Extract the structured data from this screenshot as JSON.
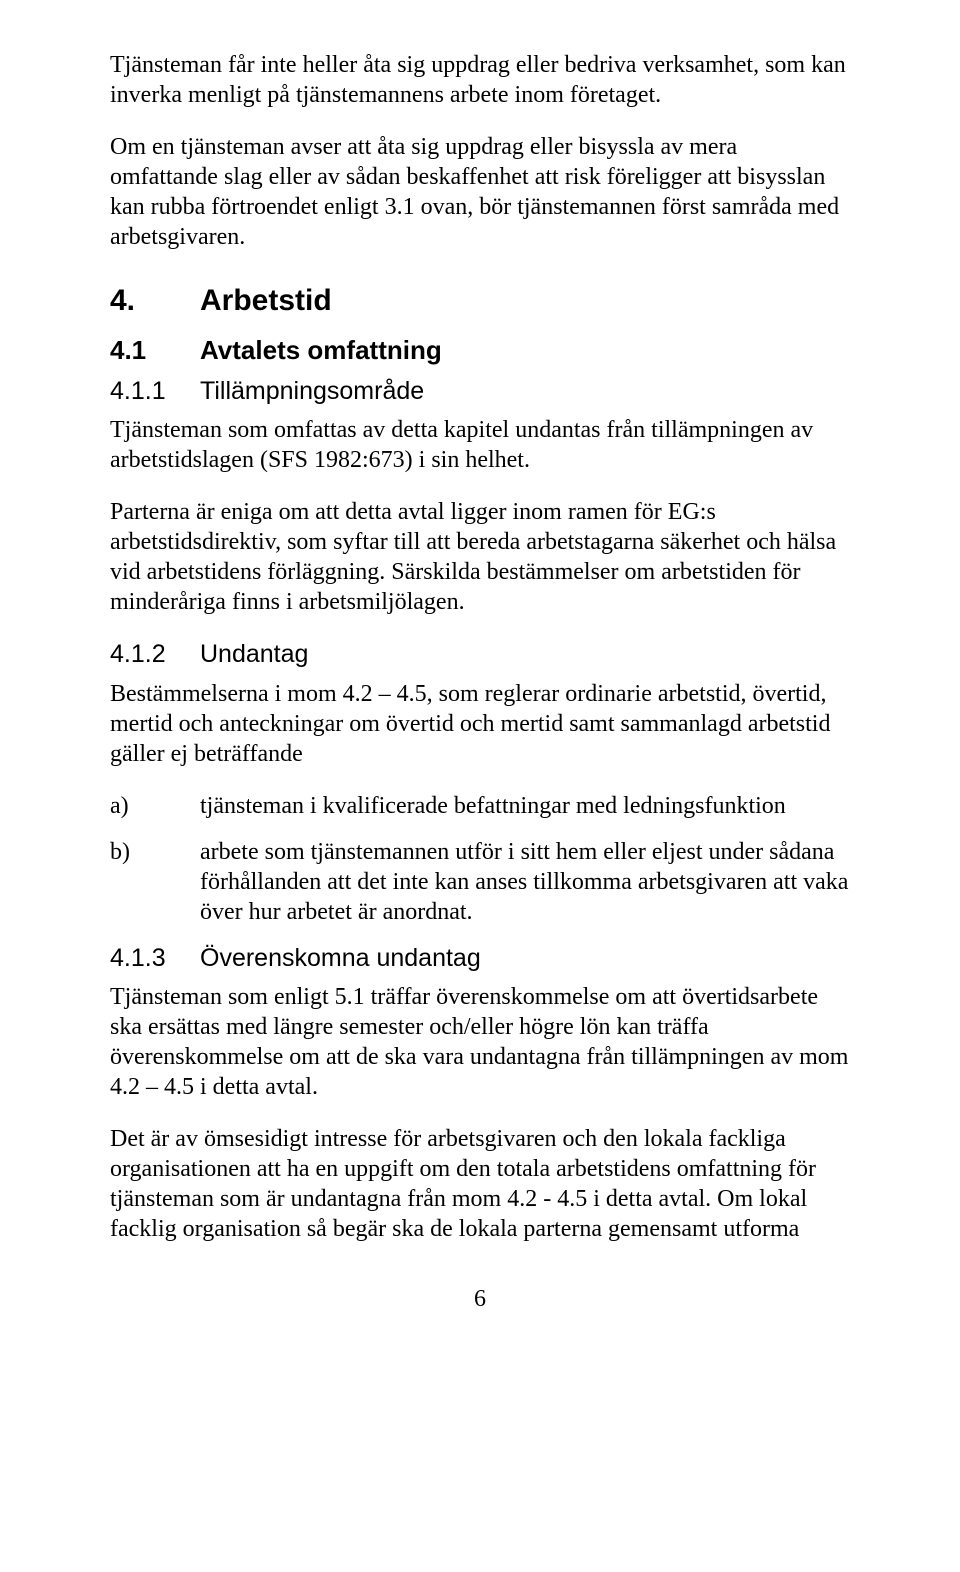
{
  "intro": {
    "p1": "Tjänsteman får inte heller åta sig uppdrag eller bedriva verksamhet, som kan inverka menligt på tjänstemannens arbete inom företaget.",
    "p2": "Om en tjänsteman avser att åta sig uppdrag eller bisyssla av mera omfattande slag eller av sådan beskaffenhet att risk föreligger att bisysslan kan rubba förtroendet enligt 3.1 ovan, bör tjänstemannen först samråda med arbetsgivaren."
  },
  "sec4": {
    "num": "4.",
    "title": "Arbetstid",
    "s1": {
      "num": "4.1",
      "title": "Avtalets omfattning",
      "s1": {
        "num": "4.1.1",
        "title": "Tillämpningsområde",
        "p1": "Tjänsteman som omfattas av detta kapitel undantas från tillämpningen av arbetstidslagen (SFS 1982:673) i sin helhet.",
        "p2": "Parterna är eniga om att detta avtal ligger inom ramen för EG:s arbetstidsdirektiv, som syftar till att bereda arbetstagarna säkerhet och hälsa vid arbetstidens förläggning. Särskilda bestämmelser om arbetstiden för minderåriga finns i arbetsmiljölagen."
      },
      "s2": {
        "num": "4.1.2",
        "title": "Undantag",
        "p1": "Bestämmelserna i mom 4.2 – 4.5, som reglerar ordinarie arbetstid, övertid, mertid och anteckningar om övertid och mertid samt sammanlagd arbetstid gäller ej beträffande",
        "items": {
          "a_label": "a)",
          "a_text": "tjänsteman i kvalificerade befattningar med ledningsfunktion",
          "b_label": "b)",
          "b_text": "arbete som tjänstemannen utför i sitt hem eller eljest under sådana förhållanden att det inte kan anses tillkomma arbetsgivaren att vaka över hur arbetet är anordnat."
        }
      },
      "s3": {
        "num": "4.1.3",
        "title": "Överenskomna undantag",
        "p1": "Tjänsteman som enligt 5.1 träffar överenskommelse om att övertidsarbete ska ersättas med längre semester och/eller högre lön kan träffa överenskommelse om att de ska vara undantagna från tillämpningen av mom 4.2 – 4.5 i detta avtal.",
        "p2": "Det är av ömsesidigt intresse för arbetsgivaren och den lokala fackliga organisationen att ha en uppgift om den totala arbetstidens omfattning för tjänsteman som är undantagna från mom 4.2 - 4.5 i detta avtal. Om lokal facklig organisation så begär ska de lokala parterna gemensamt utforma"
      }
    }
  },
  "page_number": "6"
}
